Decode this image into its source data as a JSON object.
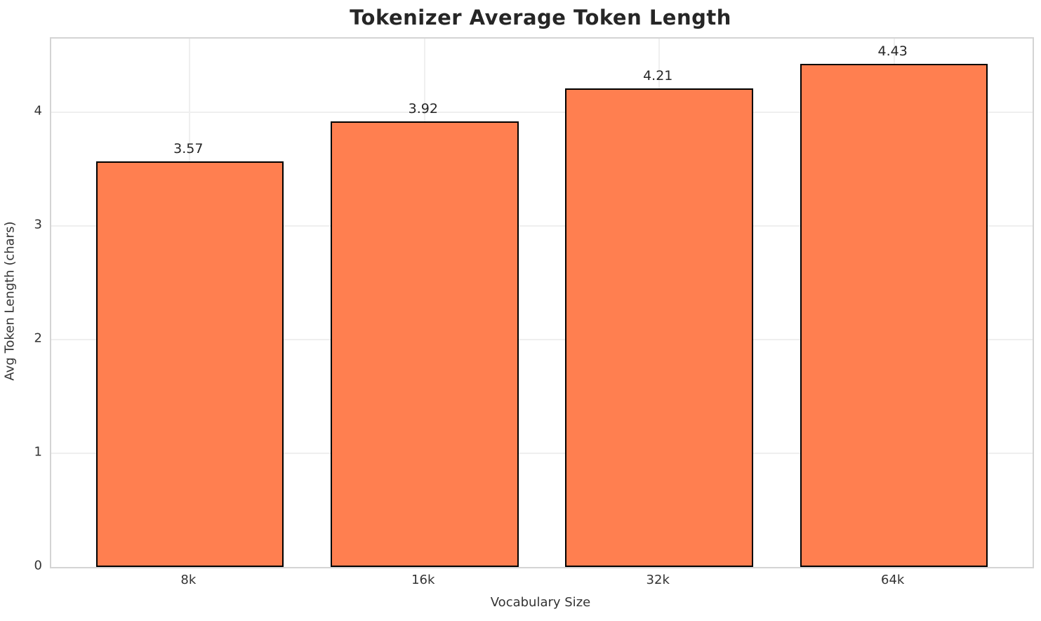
{
  "chart_data": {
    "type": "bar",
    "title": "Tokenizer Average Token Length",
    "xlabel": "Vocabulary Size",
    "ylabel": "Avg Token Length (chars)",
    "categories": [
      "8k",
      "16k",
      "32k",
      "64k"
    ],
    "values": [
      3.57,
      3.92,
      4.21,
      4.43
    ],
    "value_labels": [
      "3.57",
      "3.92",
      "4.21",
      "4.43"
    ],
    "yticks": [
      0,
      1,
      2,
      3,
      4
    ],
    "ytick_labels": [
      "0",
      "1",
      "2",
      "3",
      "4"
    ],
    "ylim": [
      0,
      4.65
    ],
    "xlim": [
      -0.59,
      3.59
    ],
    "bar_width_units": 0.8,
    "grid": "both",
    "legend": "none",
    "colors": {
      "bar_fill": "#FF7F50",
      "bar_edge": "#000000",
      "grid": "#efefef",
      "spine": "#d4d4d4",
      "title_text": "#262626",
      "tick_text": "#333333"
    }
  }
}
